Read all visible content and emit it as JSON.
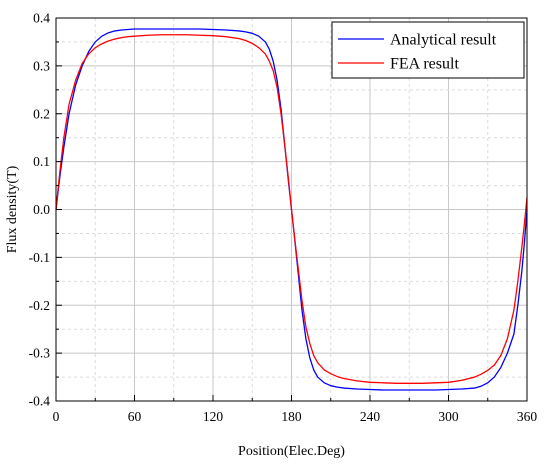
{
  "chart_data": {
    "type": "line",
    "title": "",
    "xlabel": "Position(Elec.Deg)",
    "ylabel": "Flux density(T)",
    "xlim": [
      0,
      360
    ],
    "ylim": [
      -0.4,
      0.4
    ],
    "x_ticks": [
      0,
      60,
      120,
      180,
      240,
      300,
      360
    ],
    "y_ticks": [
      -0.4,
      -0.3,
      -0.2,
      -0.1,
      0.0,
      0.1,
      0.2,
      0.3,
      0.4
    ],
    "x_tick_labels": [
      "0",
      "60",
      "120",
      "180",
      "240",
      "300",
      "360"
    ],
    "y_tick_labels": [
      "-0.4",
      "-0.3",
      "-0.2",
      "-0.1",
      "0.0",
      "0.1",
      "0.2",
      "0.3",
      "0.4"
    ],
    "grid": true,
    "legend_position": "top-right",
    "series": [
      {
        "name": "Analytical result",
        "color": "#0000ff",
        "x": [
          0,
          3,
          6,
          10,
          15,
          20,
          25,
          30,
          35,
          40,
          45,
          50,
          55,
          60,
          70,
          80,
          90,
          100,
          110,
          120,
          130,
          140,
          145,
          150,
          155,
          160,
          163,
          166,
          169,
          172,
          175,
          178,
          180,
          182,
          185,
          188,
          191,
          194,
          197,
          200,
          205,
          210,
          215,
          220,
          230,
          240,
          250,
          260,
          270,
          280,
          290,
          300,
          310,
          320,
          325,
          330,
          335,
          340,
          345,
          350,
          353,
          356,
          358,
          360
        ],
        "y": [
          0.0,
          0.07,
          0.13,
          0.2,
          0.26,
          0.3,
          0.33,
          0.35,
          0.362,
          0.369,
          0.373,
          0.375,
          0.376,
          0.377,
          0.377,
          0.377,
          0.377,
          0.377,
          0.377,
          0.376,
          0.375,
          0.373,
          0.371,
          0.368,
          0.362,
          0.35,
          0.335,
          0.31,
          0.27,
          0.21,
          0.13,
          0.05,
          0.0,
          -0.05,
          -0.13,
          -0.21,
          -0.27,
          -0.31,
          -0.335,
          -0.35,
          -0.362,
          -0.368,
          -0.371,
          -0.373,
          -0.375,
          -0.376,
          -0.377,
          -0.377,
          -0.377,
          -0.377,
          -0.377,
          -0.376,
          -0.375,
          -0.373,
          -0.369,
          -0.362,
          -0.35,
          -0.33,
          -0.3,
          -0.26,
          -0.2,
          -0.13,
          -0.07,
          0.0
        ]
      },
      {
        "name": "FEA result",
        "color": "#ff0000",
        "x": [
          0,
          3,
          6,
          10,
          15,
          20,
          25,
          30,
          35,
          40,
          45,
          50,
          55,
          60,
          70,
          80,
          90,
          100,
          110,
          120,
          130,
          140,
          145,
          150,
          155,
          160,
          163,
          166,
          169,
          172,
          175,
          178,
          180,
          182,
          185,
          188,
          191,
          194,
          197,
          200,
          205,
          210,
          215,
          220,
          230,
          240,
          250,
          260,
          270,
          280,
          290,
          300,
          310,
          320,
          325,
          330,
          335,
          340,
          345,
          350,
          353,
          356,
          358,
          360
        ],
        "y": [
          0.0,
          0.08,
          0.15,
          0.22,
          0.27,
          0.305,
          0.325,
          0.338,
          0.346,
          0.352,
          0.356,
          0.359,
          0.361,
          0.362,
          0.364,
          0.365,
          0.365,
          0.365,
          0.364,
          0.363,
          0.361,
          0.357,
          0.353,
          0.347,
          0.338,
          0.325,
          0.31,
          0.29,
          0.255,
          0.2,
          0.13,
          0.055,
          0.0,
          -0.05,
          -0.12,
          -0.19,
          -0.245,
          -0.28,
          -0.305,
          -0.32,
          -0.335,
          -0.343,
          -0.349,
          -0.353,
          -0.358,
          -0.361,
          -0.362,
          -0.363,
          -0.363,
          -0.363,
          -0.362,
          -0.361,
          -0.357,
          -0.35,
          -0.344,
          -0.336,
          -0.325,
          -0.305,
          -0.27,
          -0.21,
          -0.15,
          -0.08,
          -0.03,
          0.025
        ]
      }
    ]
  }
}
